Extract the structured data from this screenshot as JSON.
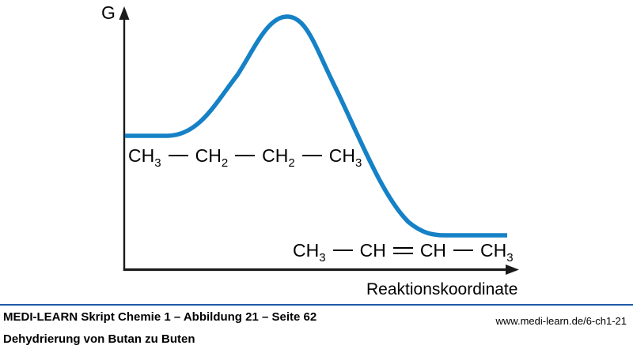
{
  "colors": {
    "curve": "#1581C6",
    "axis": "#1a1a1a",
    "footer_rule": "#1E5AA8",
    "text": "#000000"
  },
  "diagram": {
    "y_axis_label": "G",
    "x_axis_label": "Reaktionskoordinate",
    "reactant_formula": {
      "plain": "CH3 — CH2 — CH2 — CH3",
      "parts": [
        {
          "t": "CH"
        },
        {
          "s": "3"
        },
        {
          "b": "single"
        },
        {
          "t": "CH"
        },
        {
          "s": "2"
        },
        {
          "b": "single"
        },
        {
          "t": "CH"
        },
        {
          "s": "2"
        },
        {
          "b": "single"
        },
        {
          "t": "CH"
        },
        {
          "s": "3"
        }
      ]
    },
    "product_formula": {
      "plain": "CH3 — CH = CH — CH3",
      "parts": [
        {
          "t": "CH"
        },
        {
          "s": "3"
        },
        {
          "b": "single"
        },
        {
          "t": "CH"
        },
        {
          "b": "double"
        },
        {
          "t": "CH"
        },
        {
          "b": "single"
        },
        {
          "t": "CH"
        },
        {
          "s": "3"
        }
      ]
    }
  },
  "chart_data": {
    "type": "line",
    "title": "",
    "xlabel": "Reaktionskoordinate",
    "ylabel": "G",
    "axis_ticks": "none (qualitative energy profile)",
    "legend": "none",
    "grid": false,
    "series": [
      {
        "name": "Gibbs energy profile (Dehydrierung Butan zu Buten)",
        "points_normalized": [
          {
            "x": 0.0,
            "g": 0.53
          },
          {
            "x": 0.11,
            "g": 0.53
          },
          {
            "x": 0.25,
            "g": 0.7
          },
          {
            "x": 0.34,
            "g": 0.9
          },
          {
            "x": 0.42,
            "g": 1.0
          },
          {
            "x": 0.5,
            "g": 0.87
          },
          {
            "x": 0.6,
            "g": 0.55
          },
          {
            "x": 0.72,
            "g": 0.22
          },
          {
            "x": 0.82,
            "g": 0.14
          },
          {
            "x": 1.0,
            "g": 0.14
          }
        ]
      }
    ],
    "annotations": {
      "reactant_plateau_label": "CH3—CH2—CH2—CH3",
      "product_plateau_label": "CH3—CH=CH—CH3",
      "relationship": "reactant plateau higher than product plateau; single activation maximum between them"
    }
  },
  "footer": {
    "source_line": "MEDI-LEARN Skript Chemie 1 – Abbildung 21 – Seite 62",
    "caption": "Dehydrierung von Butan zu Buten",
    "url": "www.medi-learn.de/6-ch1-21"
  }
}
